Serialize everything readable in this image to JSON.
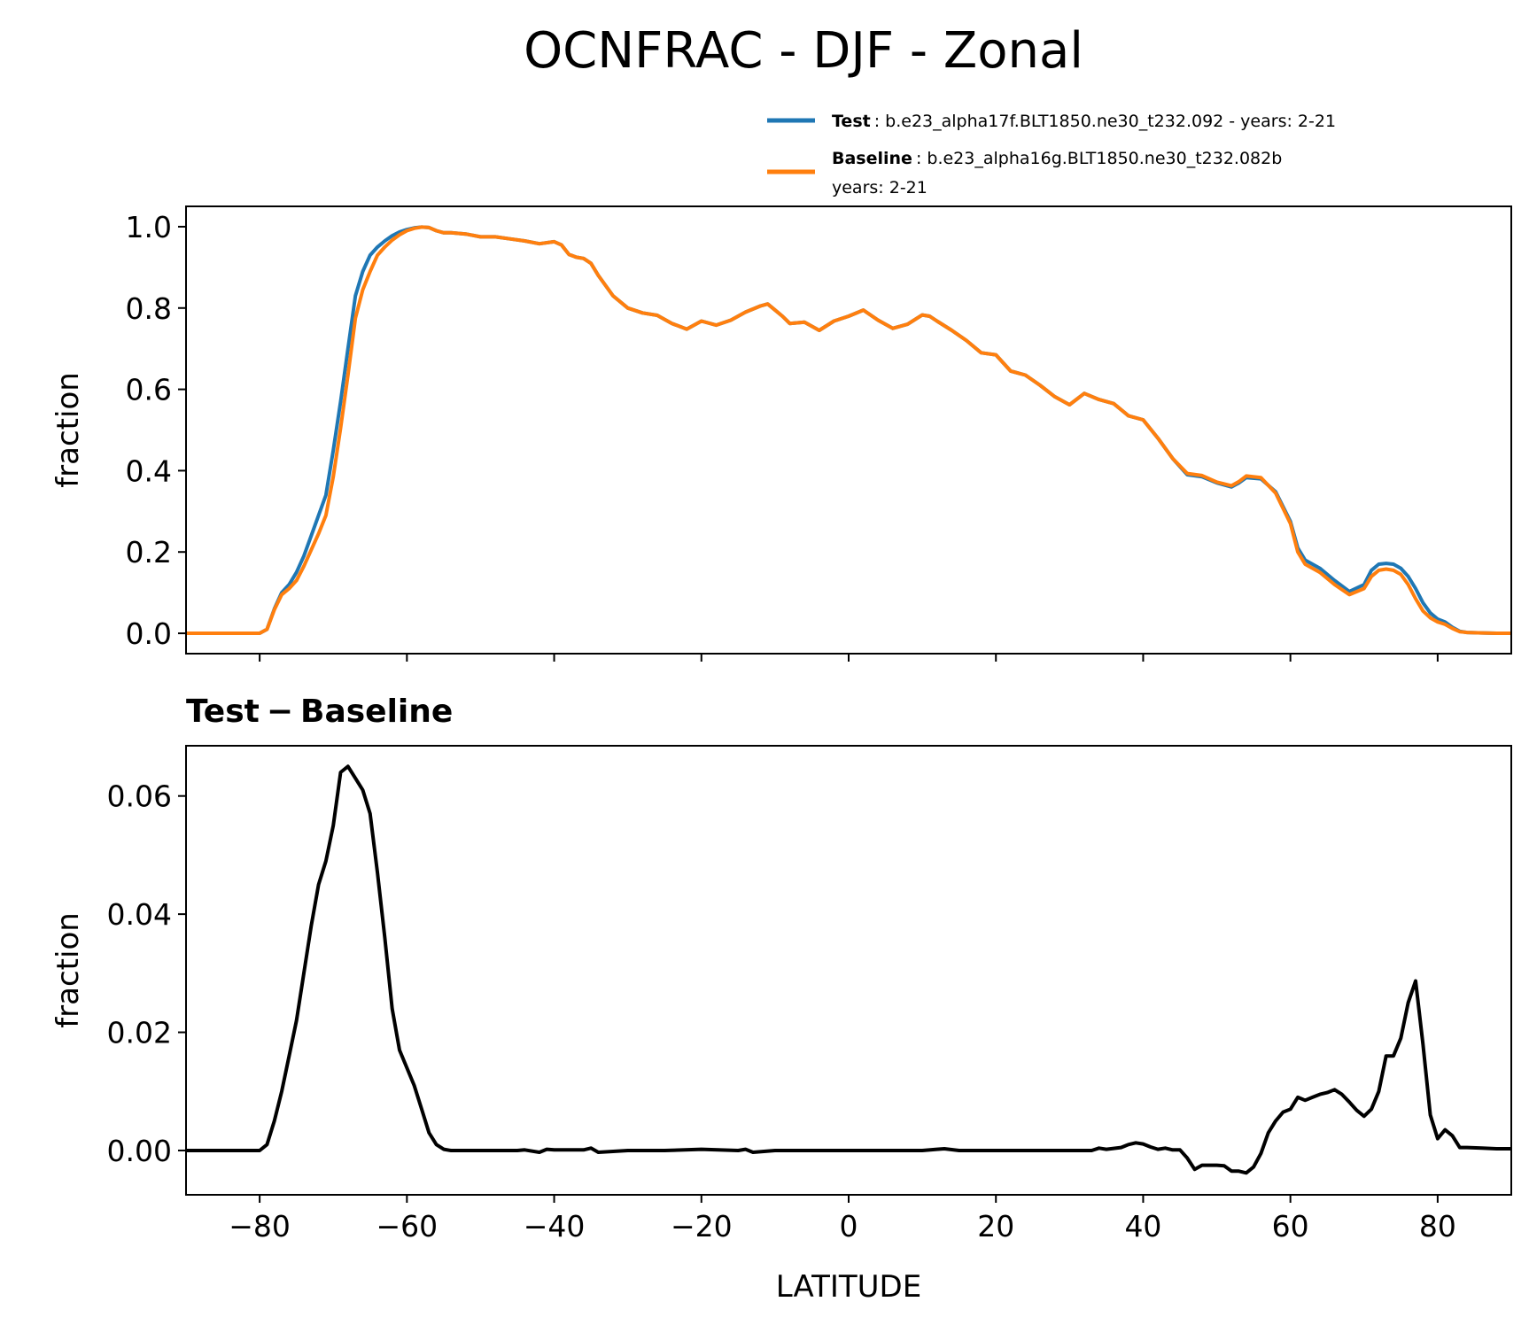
{
  "figure": {
    "title": "OCNFRAC - DJF - Zonal"
  },
  "legend": {
    "test_name": "Test",
    "test_text": ": b.e23_alpha17f.BLT1850.ne30_t232.092 - years: 2-21",
    "baseline_name": "Baseline",
    "baseline_text_line1": ": b.e23_alpha16g.BLT1850.ne30_t232.082b",
    "baseline_text_line2": "years: 2-21",
    "placement": "above top panel, right"
  },
  "colors": {
    "test": "#1f77b4",
    "baseline": "#ff7f0e",
    "difference": "#000000"
  },
  "diff_title_parts": [
    "Test",
    "−",
    "Baseline"
  ],
  "chart_data": [
    {
      "type": "line",
      "ylabel": "fraction",
      "xlim": [
        -90,
        90
      ],
      "ylim": [
        -0.05,
        1.05
      ],
      "yticks": [
        0.0,
        0.2,
        0.4,
        0.6,
        0.8,
        1.0
      ],
      "ytick_labels": [
        "0.0",
        "0.2",
        "0.4",
        "0.6",
        "0.8",
        "1.0"
      ],
      "xticks": [
        -80,
        -60,
        -40,
        -20,
        0,
        20,
        40,
        80
      ],
      "xticks_all": [
        -80,
        -60,
        -40,
        -20,
        0,
        20,
        40,
        60,
        80
      ],
      "show_xtick_labels": false,
      "grid": false,
      "series": [
        {
          "name": "Test",
          "x": [
            -90,
            -88,
            -86,
            -84,
            -82,
            -80,
            -79,
            -78,
            -77,
            -76,
            -75,
            -74,
            -73,
            -72,
            -71,
            -70,
            -69,
            -68,
            -67,
            -66,
            -65,
            -64,
            -63,
            -62,
            -61,
            -60,
            -59,
            -58,
            -57,
            -56,
            -55,
            -54,
            -52,
            -50,
            -48,
            -46,
            -44,
            -42,
            -40,
            -39,
            -38,
            -37,
            -36,
            -35,
            -34,
            -33,
            -32,
            -30,
            -28,
            -26,
            -24,
            -22,
            -20,
            -18,
            -16,
            -14,
            -12,
            -11,
            -10,
            -9,
            -8,
            -6,
            -4,
            -2,
            0,
            2,
            4,
            6,
            8,
            10,
            11,
            12,
            14,
            16,
            18,
            20,
            22,
            24,
            26,
            28,
            30,
            32,
            34,
            36,
            38,
            40,
            42,
            44,
            46,
            48,
            50,
            52,
            53,
            54,
            56,
            58,
            60,
            61,
            62,
            64,
            66,
            68,
            70,
            71,
            72,
            73,
            74,
            75,
            76,
            77,
            78,
            79,
            80,
            81,
            82,
            83,
            84,
            86,
            88,
            90
          ],
          "y": [
            0,
            0,
            0,
            0,
            0,
            0,
            0.01,
            0.06,
            0.1,
            0.12,
            0.15,
            0.19,
            0.24,
            0.29,
            0.34,
            0.45,
            0.57,
            0.7,
            0.83,
            0.89,
            0.93,
            0.95,
            0.965,
            0.978,
            0.987,
            0.993,
            0.997,
            0.999,
            0.998,
            0.99,
            0.985,
            0.985,
            0.982,
            0.975,
            0.975,
            0.97,
            0.965,
            0.958,
            0.963,
            0.955,
            0.932,
            0.925,
            0.922,
            0.91,
            0.88,
            0.855,
            0.83,
            0.8,
            0.788,
            0.782,
            0.762,
            0.748,
            0.768,
            0.758,
            0.77,
            0.79,
            0.805,
            0.81,
            0.795,
            0.78,
            0.762,
            0.765,
            0.745,
            0.768,
            0.78,
            0.795,
            0.77,
            0.75,
            0.76,
            0.783,
            0.78,
            0.768,
            0.745,
            0.72,
            0.69,
            0.685,
            0.645,
            0.635,
            0.61,
            0.582,
            0.562,
            0.59,
            0.575,
            0.565,
            0.535,
            0.525,
            0.48,
            0.43,
            0.39,
            0.385,
            0.37,
            0.36,
            0.37,
            0.383,
            0.38,
            0.348,
            0.275,
            0.21,
            0.18,
            0.16,
            0.13,
            0.103,
            0.12,
            0.155,
            0.17,
            0.172,
            0.17,
            0.16,
            0.14,
            0.11,
            0.075,
            0.05,
            0.035,
            0.028,
            0.015,
            0.005,
            0.002,
            0.001,
            0,
            0
          ],
          "color": "#1f77b4"
        },
        {
          "name": "Baseline",
          "x": [
            -90,
            -88,
            -86,
            -84,
            -82,
            -80,
            -79,
            -78,
            -77,
            -76,
            -75,
            -74,
            -73,
            -72,
            -71,
            -70,
            -69,
            -68,
            -67,
            -66,
            -65,
            -64,
            -63,
            -62,
            -61,
            -60,
            -59,
            -58,
            -57,
            -56,
            -55,
            -54,
            -52,
            -50,
            -48,
            -46,
            -44,
            -42,
            -40,
            -39,
            -38,
            -37,
            -36,
            -35,
            -34,
            -33,
            -32,
            -30,
            -28,
            -26,
            -24,
            -22,
            -20,
            -18,
            -16,
            -14,
            -12,
            -11,
            -10,
            -9,
            -8,
            -6,
            -4,
            -2,
            0,
            2,
            4,
            6,
            8,
            10,
            11,
            12,
            14,
            16,
            18,
            20,
            22,
            24,
            26,
            28,
            30,
            32,
            34,
            36,
            38,
            40,
            42,
            44,
            46,
            48,
            50,
            52,
            53,
            54,
            56,
            58,
            60,
            61,
            62,
            64,
            66,
            68,
            70,
            71,
            72,
            73,
            74,
            75,
            76,
            77,
            78,
            79,
            80,
            81,
            82,
            83,
            84,
            86,
            88,
            90
          ],
          "y": [
            0,
            0,
            0,
            0,
            0,
            0,
            0.01,
            0.058,
            0.095,
            0.11,
            0.13,
            0.165,
            0.205,
            0.245,
            0.29,
            0.385,
            0.505,
            0.635,
            0.775,
            0.845,
            0.89,
            0.93,
            0.95,
            0.967,
            0.98,
            0.99,
            0.996,
            0.999,
            0.998,
            0.99,
            0.985,
            0.985,
            0.982,
            0.975,
            0.975,
            0.97,
            0.965,
            0.958,
            0.963,
            0.955,
            0.932,
            0.925,
            0.922,
            0.91,
            0.88,
            0.855,
            0.83,
            0.8,
            0.788,
            0.782,
            0.762,
            0.748,
            0.768,
            0.758,
            0.77,
            0.79,
            0.805,
            0.81,
            0.795,
            0.78,
            0.762,
            0.765,
            0.745,
            0.768,
            0.78,
            0.795,
            0.77,
            0.75,
            0.76,
            0.783,
            0.78,
            0.768,
            0.745,
            0.72,
            0.69,
            0.685,
            0.645,
            0.635,
            0.61,
            0.582,
            0.562,
            0.59,
            0.575,
            0.565,
            0.535,
            0.525,
            0.48,
            0.43,
            0.393,
            0.388,
            0.372,
            0.363,
            0.373,
            0.387,
            0.383,
            0.345,
            0.27,
            0.2,
            0.17,
            0.15,
            0.12,
            0.095,
            0.11,
            0.14,
            0.155,
            0.158,
            0.155,
            0.145,
            0.12,
            0.085,
            0.055,
            0.038,
            0.028,
            0.022,
            0.012,
            0.004,
            0.002,
            0.001,
            0,
            0
          ],
          "color": "#ff7f0e"
        }
      ]
    },
    {
      "type": "line",
      "title": "Test − Baseline",
      "ylabel": "fraction",
      "xlabel": "LATITUDE",
      "xlim": [
        -90,
        90
      ],
      "ylim": [
        -0.0075,
        0.0685
      ],
      "yticks": [
        0.0,
        0.02,
        0.04,
        0.06
      ],
      "ytick_labels": [
        "0.00",
        "0.02",
        "0.04",
        "0.06"
      ],
      "xticks": [
        -80,
        -60,
        -40,
        -20,
        0,
        20,
        40,
        60,
        80
      ],
      "xtick_labels": [
        "−80",
        "−60",
        "−40",
        "−20",
        "0",
        "20",
        "40",
        "60",
        "80"
      ],
      "grid": false,
      "series": [
        {
          "name": "Test − Baseline",
          "x": [
            -90,
            -88,
            -86,
            -84,
            -82,
            -80,
            -79,
            -78,
            -77,
            -76,
            -75,
            -74,
            -73,
            -72,
            -71,
            -70,
            -69,
            -68,
            -67,
            -66,
            -65,
            -64,
            -63,
            -62,
            -61,
            -60,
            -59,
            -58,
            -57,
            -56,
            -55,
            -54,
            -52,
            -50,
            -45,
            -44,
            -42,
            -41,
            -40,
            -36,
            -35,
            -34,
            -30,
            -25,
            -20,
            -15,
            -14,
            -13,
            -10,
            -5,
            0,
            5,
            10,
            12,
            13,
            15,
            20,
            25,
            30,
            33,
            34,
            35,
            37,
            38,
            39,
            40,
            41,
            42,
            43,
            44,
            45,
            46,
            47,
            48,
            50,
            51,
            52,
            53,
            54,
            55,
            56,
            57,
            58,
            59,
            60,
            61,
            62,
            63,
            64,
            65,
            66,
            67,
            68,
            69,
            70,
            71,
            72,
            73,
            74,
            75,
            76,
            77,
            78,
            79,
            80,
            81,
            82,
            83,
            84,
            86,
            88,
            90
          ],
          "y": [
            0,
            0,
            0,
            0,
            0,
            0,
            0.001,
            0.005,
            0.01,
            0.016,
            0.022,
            0.03,
            0.038,
            0.045,
            0.049,
            0.055,
            0.064,
            0.065,
            0.063,
            0.061,
            0.057,
            0.047,
            0.036,
            0.024,
            0.017,
            0.014,
            0.011,
            0.007,
            0.003,
            0.001,
            0.0002,
            0,
            0,
            0,
            0,
            0.0001,
            -0.0003,
            0.0002,
            0.0001,
            0.0001,
            0.0004,
            -0.0003,
            0,
            0,
            0.0002,
            0,
            0.0002,
            -0.0003,
            0,
            0,
            0,
            0,
            0,
            0.0002,
            0.0003,
            0,
            0,
            0,
            0,
            0,
            0.0004,
            0.0002,
            0.0005,
            0.001,
            0.0013,
            0.0011,
            0.0006,
            0.0002,
            0.0004,
            0.0001,
            0.0001,
            -0.0013,
            -0.0032,
            -0.0025,
            -0.0025,
            -0.0026,
            -0.0035,
            -0.0035,
            -0.0038,
            -0.0028,
            -0.0005,
            0.003,
            0.005,
            0.0065,
            0.007,
            0.009,
            0.0085,
            0.009,
            0.0095,
            0.0098,
            0.0103,
            0.0095,
            0.0082,
            0.0068,
            0.0058,
            0.007,
            0.01,
            0.016,
            0.016,
            0.019,
            0.025,
            0.0287,
            0.018,
            0.006,
            0.002,
            0.0035,
            0.0025,
            0.0005,
            0.0005,
            0.0004,
            0.0003,
            0.0003
          ],
          "color": "#000000"
        }
      ]
    }
  ]
}
